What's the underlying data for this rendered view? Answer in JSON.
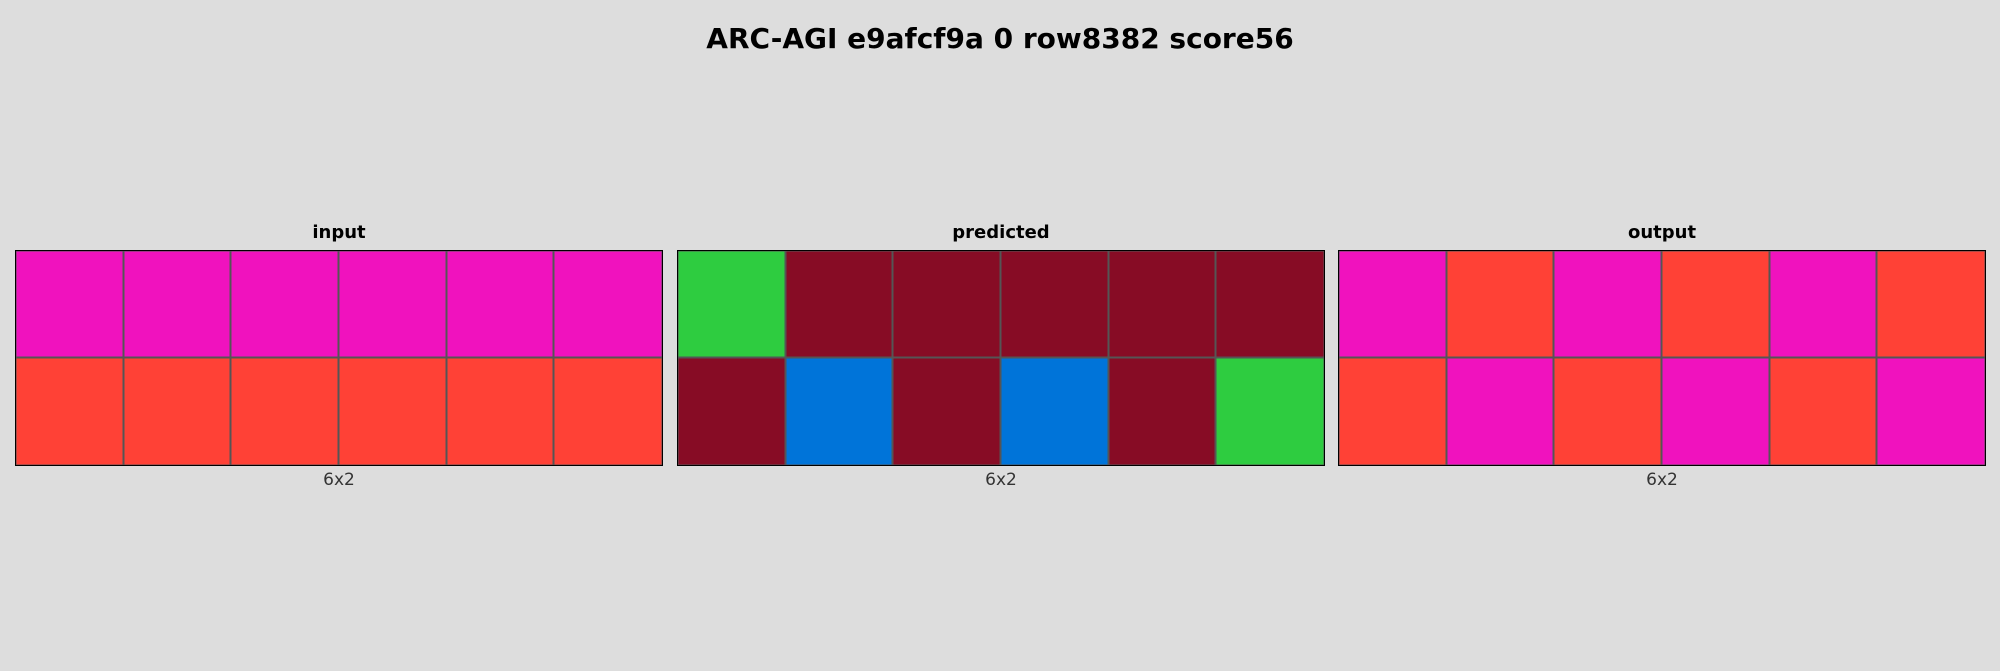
{
  "title": "ARC-AGI e9afcf9a 0 row8382 score56",
  "palette": {
    "magenta": "#f012be",
    "red": "#ff4136",
    "green": "#2ecc40",
    "maroon": "#870c25",
    "blue": "#0074d9"
  },
  "panels": [
    {
      "label": "input",
      "size": "6x2",
      "rows": [
        [
          "magenta",
          "magenta",
          "magenta",
          "magenta",
          "magenta",
          "magenta"
        ],
        [
          "red",
          "red",
          "red",
          "red",
          "red",
          "red"
        ]
      ]
    },
    {
      "label": "predicted",
      "size": "6x2",
      "rows": [
        [
          "green",
          "maroon",
          "maroon",
          "maroon",
          "maroon",
          "maroon"
        ],
        [
          "maroon",
          "blue",
          "maroon",
          "blue",
          "maroon",
          "green"
        ]
      ]
    },
    {
      "label": "output",
      "size": "6x2",
      "rows": [
        [
          "magenta",
          "red",
          "magenta",
          "red",
          "magenta",
          "red"
        ],
        [
          "red",
          "magenta",
          "red",
          "magenta",
          "red",
          "magenta"
        ]
      ]
    }
  ]
}
